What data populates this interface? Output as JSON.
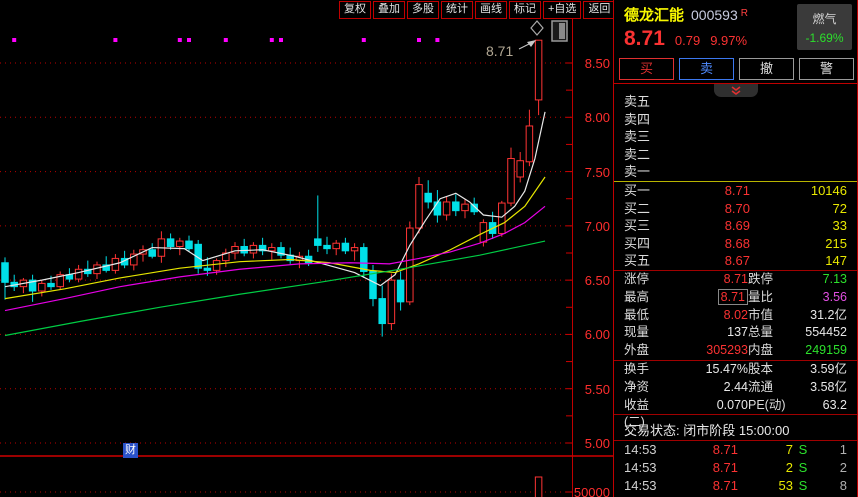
{
  "toolbar": {
    "buttons": [
      "复权",
      "叠加",
      "多股",
      "统计",
      "画线",
      "标记",
      "+自选",
      "返回"
    ]
  },
  "stock": {
    "name": "德龙汇能",
    "code": "000593",
    "flag": "R",
    "price": "8.71",
    "change": "0.79",
    "change_pct": "9.97%",
    "sector": {
      "name": "燃气",
      "change_pct": "-1.69%"
    }
  },
  "trade_buttons": [
    {
      "label": "买"
    },
    {
      "label": "卖"
    },
    {
      "label": "撤"
    },
    {
      "label": "警"
    }
  ],
  "order_book": {
    "asks": [
      {
        "label": "卖五",
        "price": "",
        "volume": ""
      },
      {
        "label": "卖四",
        "price": "",
        "volume": ""
      },
      {
        "label": "卖三",
        "price": "",
        "volume": ""
      },
      {
        "label": "卖二",
        "price": "",
        "volume": ""
      },
      {
        "label": "卖一",
        "price": "",
        "volume": ""
      }
    ],
    "bids": [
      {
        "label": "买一",
        "price": "8.71",
        "volume": "10146"
      },
      {
        "label": "买二",
        "price": "8.70",
        "volume": "72"
      },
      {
        "label": "买三",
        "price": "8.69",
        "volume": "33"
      },
      {
        "label": "买四",
        "price": "8.68",
        "volume": "215"
      },
      {
        "label": "买五",
        "price": "8.67",
        "volume": "147"
      }
    ]
  },
  "stats": {
    "rows": [
      {
        "l1": "涨停",
        "v1": "8.71",
        "l2": "跌停",
        "v2": "7.13"
      },
      {
        "l1": "最高",
        "v1": "8.71",
        "l2": "量比",
        "v2": "3.56"
      },
      {
        "l1": "最低",
        "v1": "8.02",
        "l2": "市值",
        "v2": "31.2亿"
      },
      {
        "l1": "现量",
        "v1": "137",
        "l2": "总量",
        "v2": "554452"
      },
      {
        "l1": "外盘",
        "v1": "305293",
        "l2": "内盘",
        "v2": "249159"
      },
      {
        "l1": "换手",
        "v1": "15.47%",
        "l2": "股本",
        "v2": "3.59亿"
      },
      {
        "l1": "净资",
        "v1": "2.44",
        "l2": "流通",
        "v2": "3.58亿"
      },
      {
        "l1": "收益(二)",
        "v1": "0.070",
        "l2": "PE(动)",
        "v2": "63.2"
      }
    ]
  },
  "status_line": "交易状态: 闭市阶段 15:00:00",
  "ticks": [
    {
      "time": "14:53",
      "price": "8.71",
      "volume": "7",
      "side": "S",
      "count": "1"
    },
    {
      "time": "14:53",
      "price": "8.71",
      "volume": "2",
      "side": "S",
      "count": "2"
    },
    {
      "time": "14:53",
      "price": "8.71",
      "volume": "53",
      "side": "S",
      "count": "8"
    }
  ],
  "chart": {
    "flag_label": "财"
  },
  "chart_data": {
    "type": "candlestick",
    "title": "德龙汇能 000593 daily K-line",
    "y_ticks": [
      "8.50",
      "8.00",
      "7.50",
      "7.00",
      "6.50",
      "6.00",
      "5.50",
      "5.00"
    ],
    "y_range": [
      5.0,
      8.5
    ],
    "volume_tick": "50000",
    "grid": "dotted-red",
    "candles": [
      [
        6.66,
        6.71,
        6.32,
        6.48
      ],
      [
        6.48,
        6.55,
        6.4,
        6.44
      ],
      [
        6.44,
        6.52,
        6.38,
        6.5
      ],
      [
        6.5,
        6.55,
        6.3,
        6.4
      ],
      [
        6.4,
        6.5,
        6.35,
        6.47
      ],
      [
        6.47,
        6.54,
        6.41,
        6.44
      ],
      [
        6.44,
        6.58,
        6.41,
        6.55
      ],
      [
        6.55,
        6.61,
        6.48,
        6.51
      ],
      [
        6.51,
        6.64,
        6.48,
        6.6
      ],
      [
        6.6,
        6.68,
        6.53,
        6.56
      ],
      [
        6.56,
        6.67,
        6.51,
        6.64
      ],
      [
        6.64,
        6.72,
        6.57,
        6.59
      ],
      [
        6.59,
        6.74,
        6.56,
        6.7
      ],
      [
        6.7,
        6.77,
        6.61,
        6.64
      ],
      [
        6.64,
        6.78,
        6.59,
        6.74
      ],
      [
        6.74,
        6.82,
        6.67,
        6.78
      ],
      [
        6.78,
        6.84,
        6.7,
        6.72
      ],
      [
        6.72,
        6.95,
        6.66,
        6.88
      ],
      [
        6.88,
        6.93,
        6.78,
        6.81
      ],
      [
        6.81,
        6.89,
        6.73,
        6.86
      ],
      [
        6.86,
        6.91,
        6.76,
        6.79
      ],
      [
        6.83,
        6.87,
        6.56,
        6.61
      ],
      [
        6.61,
        6.71,
        6.54,
        6.59
      ],
      [
        6.59,
        6.7,
        6.55,
        6.68
      ],
      [
        6.68,
        6.79,
        6.62,
        6.75
      ],
      [
        6.75,
        6.85,
        6.69,
        6.81
      ],
      [
        6.81,
        6.88,
        6.72,
        6.75
      ],
      [
        6.75,
        6.85,
        6.7,
        6.82
      ],
      [
        6.82,
        6.89,
        6.73,
        6.77
      ],
      [
        6.77,
        6.84,
        6.69,
        6.8
      ],
      [
        6.8,
        6.85,
        6.7,
        6.73
      ],
      [
        6.73,
        6.8,
        6.65,
        6.68
      ],
      [
        6.68,
        6.76,
        6.61,
        6.72
      ],
      [
        6.72,
        6.78,
        6.63,
        6.66
      ],
      [
        6.88,
        7.28,
        6.76,
        6.82
      ],
      [
        6.82,
        6.9,
        6.74,
        6.79
      ],
      [
        6.79,
        6.87,
        6.73,
        6.84
      ],
      [
        6.84,
        6.89,
        6.74,
        6.77
      ],
      [
        6.77,
        6.84,
        6.68,
        6.8
      ],
      [
        6.8,
        6.84,
        6.52,
        6.58
      ],
      [
        6.58,
        6.64,
        6.26,
        6.33
      ],
      [
        6.33,
        6.45,
        5.98,
        6.1
      ],
      [
        6.1,
        6.56,
        6.04,
        6.5
      ],
      [
        6.5,
        6.58,
        6.22,
        6.3
      ],
      [
        6.3,
        7.04,
        6.27,
        6.98
      ],
      [
        6.98,
        7.45,
        6.93,
        7.38
      ],
      [
        7.3,
        7.42,
        7.16,
        7.22
      ],
      [
        7.22,
        7.33,
        7.03,
        7.1
      ],
      [
        7.1,
        7.27,
        7.05,
        7.22
      ],
      [
        7.22,
        7.29,
        7.09,
        7.14
      ],
      [
        7.14,
        7.25,
        7.07,
        7.2
      ],
      [
        7.2,
        7.26,
        7.1,
        7.13
      ],
      [
        6.85,
        7.06,
        6.81,
        7.03
      ],
      [
        7.03,
        7.13,
        6.88,
        6.93
      ],
      [
        6.93,
        7.23,
        6.9,
        7.21
      ],
      [
        7.21,
        7.72,
        7.18,
        7.62
      ],
      [
        7.45,
        7.68,
        7.4,
        7.6
      ],
      [
        7.59,
        8.07,
        7.55,
        7.92
      ],
      [
        8.16,
        8.71,
        8.02,
        8.71
      ]
    ],
    "marker_indices": [
      1,
      12,
      19,
      20,
      24,
      29,
      30,
      39,
      45,
      47
    ],
    "last_candle_volume_bar_index": 58,
    "ma_lines": [
      {
        "name": "ma-white",
        "color": "#e8e8e8",
        "points": [
          [
            0,
            6.44
          ],
          [
            4,
            6.5
          ],
          [
            8,
            6.57
          ],
          [
            12.5,
            6.66
          ],
          [
            16,
            6.8
          ],
          [
            19.5,
            6.79
          ],
          [
            21.5,
            6.68
          ],
          [
            25,
            6.77
          ],
          [
            28,
            6.78
          ],
          [
            31.5,
            6.72
          ],
          [
            35,
            6.64
          ],
          [
            38,
            6.57
          ],
          [
            40.8,
            6.45
          ],
          [
            42.4,
            6.55
          ],
          [
            44,
            6.82
          ],
          [
            45.7,
            7.05
          ],
          [
            47.3,
            7.25
          ],
          [
            49,
            7.3
          ],
          [
            50.5,
            7.22
          ],
          [
            52,
            7.1
          ],
          [
            54,
            7.08
          ],
          [
            55.4,
            7.18
          ],
          [
            56.5,
            7.32
          ],
          [
            57.6,
            7.62
          ],
          [
            58.7,
            8.05
          ]
        ]
      },
      {
        "name": "ma-yellow",
        "color": "#e6e600",
        "points": [
          [
            0,
            6.33
          ],
          [
            6.5,
            6.42
          ],
          [
            12.5,
            6.52
          ],
          [
            19,
            6.61
          ],
          [
            25.5,
            6.67
          ],
          [
            31,
            6.69
          ],
          [
            35.3,
            6.66
          ],
          [
            39.7,
            6.59
          ],
          [
            42.4,
            6.57
          ],
          [
            45,
            6.65
          ],
          [
            48.4,
            6.78
          ],
          [
            51.6,
            6.92
          ],
          [
            54.3,
            7.03
          ],
          [
            56.5,
            7.18
          ],
          [
            58.7,
            7.45
          ]
        ]
      },
      {
        "name": "ma-magenta",
        "color": "#e600e6",
        "points": [
          [
            0,
            6.22
          ],
          [
            6.5,
            6.33
          ],
          [
            12.5,
            6.44
          ],
          [
            19,
            6.53
          ],
          [
            25.5,
            6.6
          ],
          [
            32,
            6.65
          ],
          [
            37.5,
            6.66
          ],
          [
            41.8,
            6.65
          ],
          [
            45,
            6.7
          ],
          [
            48.4,
            6.76
          ],
          [
            51.6,
            6.84
          ],
          [
            54.3,
            6.93
          ],
          [
            56.5,
            7.03
          ],
          [
            58.7,
            7.18
          ]
        ]
      },
      {
        "name": "ma-green",
        "color": "#00cc44",
        "points": [
          [
            0,
            5.99
          ],
          [
            8.2,
            6.12
          ],
          [
            16.8,
            6.25
          ],
          [
            25.5,
            6.37
          ],
          [
            34.2,
            6.48
          ],
          [
            42.9,
            6.6
          ],
          [
            51.6,
            6.73
          ],
          [
            58.7,
            6.86
          ]
        ]
      }
    ],
    "annotation": {
      "text": "8.71",
      "price": 8.71
    },
    "colors": {
      "up": "#ff3434",
      "down": "#00e0e8",
      "grid": "#bb0000",
      "axis_text": "#ff2e2e",
      "marker": "#ff00ff",
      "border": "#c00000"
    }
  }
}
